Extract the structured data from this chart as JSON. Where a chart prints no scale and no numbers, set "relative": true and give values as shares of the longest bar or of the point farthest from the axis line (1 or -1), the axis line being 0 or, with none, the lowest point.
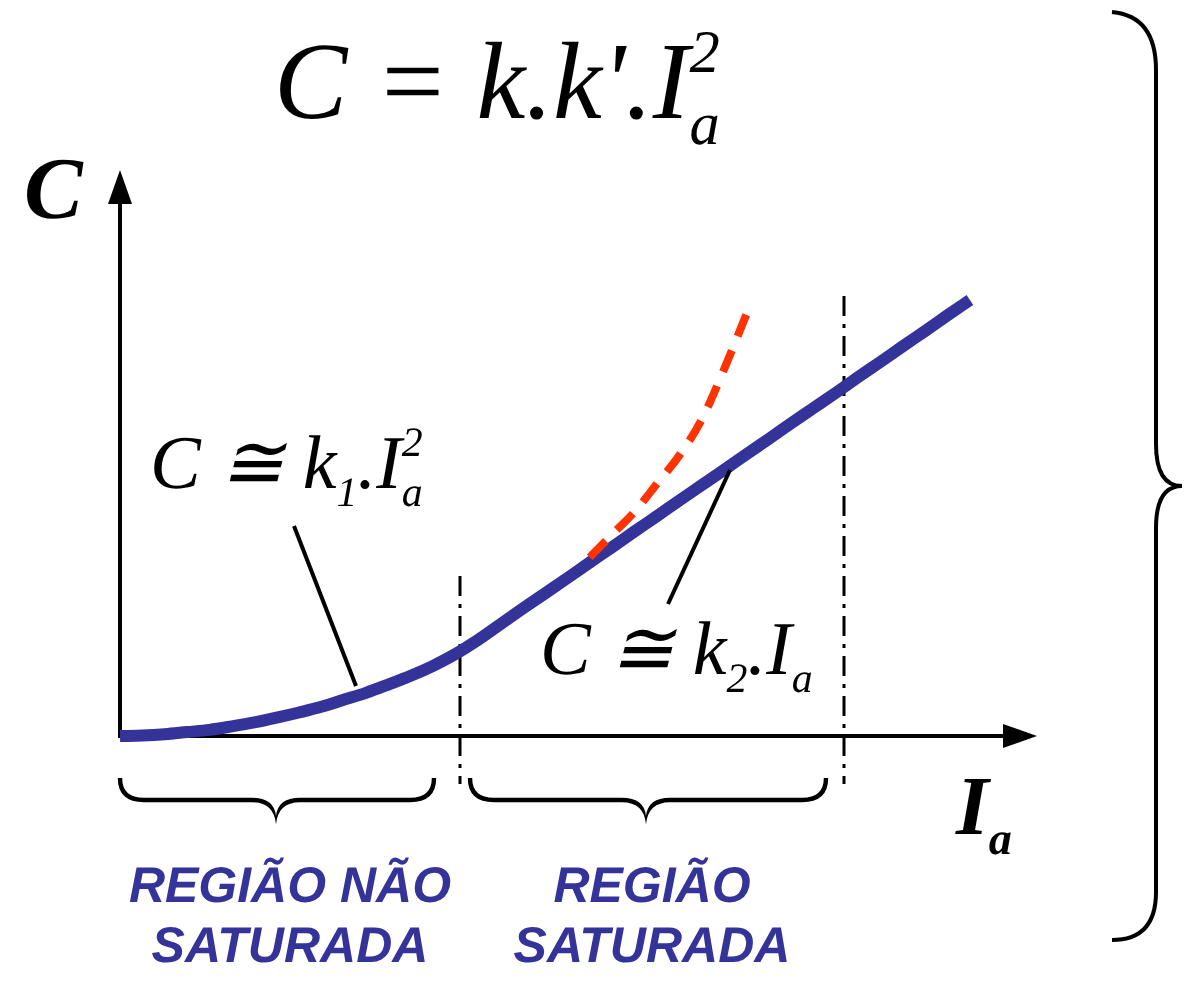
{
  "chart_data": {
    "type": "line",
    "title": "C = k.k'.I$_{a}$$^{2}$",
    "xlabel": "I$_{a}$",
    "ylabel": "C",
    "annotations": [
      "C ≅ k$_{1}$.I$_{a}$$^{2}$",
      "C ≅ k$_{2}$.I$_{a}$",
      "REGIÃO NÃO SATURADA",
      "REGIÃO SATURADA"
    ],
    "categories": [
      null,
      null,
      null,
      null,
      null,
      null,
      null,
      null,
      null,
      null,
      null,
      null,
      null,
      null,
      null,
      null,
      null,
      null,
      null,
      null,
      null,
      null,
      null,
      null,
      null,
      null,
      null,
      null,
      null,
      null,
      null,
      null,
      null,
      null,
      null,
      null,
      null,
      null,
      null,
      null,
      null,
      null
    ],
    "relative": true,
    "marker": "none",
    "series": [
      {
        "color": "#333399",
        "values": [
          0,
          0.001,
          0.004,
          0.009,
          0.014,
          0.022,
          0.031,
          0.042,
          0.054,
          0.067,
          0.083,
          0.099,
          0.118,
          0.138,
          0.161,
          0.188,
          0.22,
          0.256,
          0.292,
          0.327,
          0.362,
          0.398,
          0.433,
          0.469,
          0.504,
          0.54,
          0.575,
          0.61,
          0.646,
          0.681,
          0.717,
          0.752,
          0.787,
          0.823,
          0.858,
          0.894,
          0.929,
          0.965,
          1,
          null,
          null,
          null
        ]
      },
      {
        "color": "#ff3300",
        "line_style": "dashed",
        "values": [
          null,
          null,
          null,
          null,
          null,
          null,
          null,
          null,
          null,
          null,
          null,
          null,
          null,
          null,
          null,
          null,
          null,
          null,
          null,
          null,
          null,
          0.41,
          0.462,
          0.514,
          0.578,
          0.643,
          0.725,
          0.84,
          0.966,
          null,
          null,
          null,
          null,
          null,
          null,
          null,
          null,
          null,
          null,
          null,
          null,
          null
        ]
      }
    ]
  }
}
